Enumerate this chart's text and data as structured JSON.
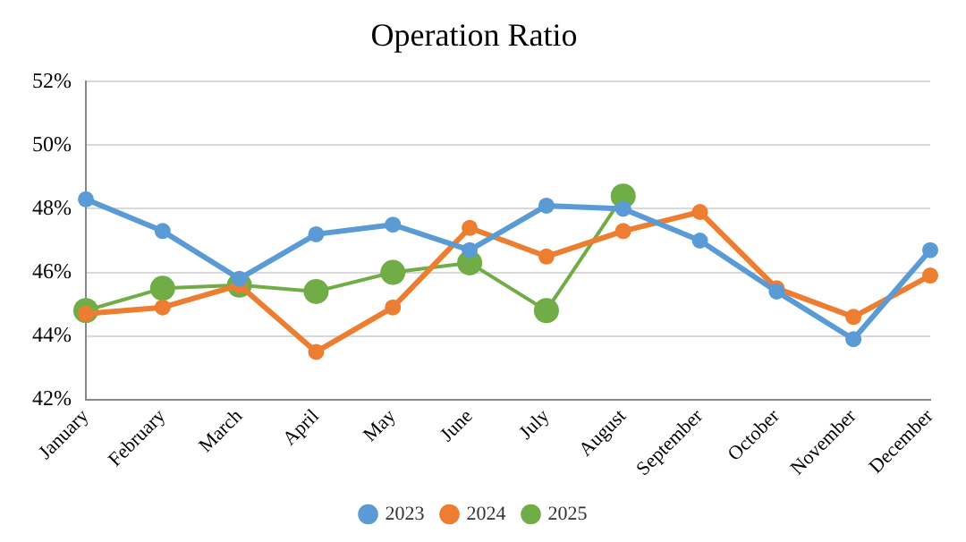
{
  "chart_data": {
    "type": "line",
    "title": "Operation Ratio",
    "categories": [
      "January",
      "February",
      "March",
      "April",
      "May",
      "June",
      "July",
      "August",
      "September",
      "October",
      "November",
      "December"
    ],
    "series": [
      {
        "name": "2023",
        "color": "#5b9bd5",
        "values": [
          48.3,
          47.3,
          45.8,
          47.2,
          47.5,
          46.7,
          48.1,
          48.0,
          47.0,
          45.4,
          43.9,
          46.7
        ]
      },
      {
        "name": "2024",
        "color": "#ed7d31",
        "values": [
          44.7,
          44.9,
          45.6,
          43.5,
          44.9,
          47.4,
          46.5,
          47.3,
          47.9,
          45.5,
          44.6,
          45.9
        ]
      },
      {
        "name": "2025",
        "color": "#70ad47",
        "values": [
          44.8,
          45.5,
          45.6,
          45.4,
          46.0,
          46.3,
          44.8,
          48.4,
          null,
          null,
          null,
          null
        ]
      }
    ],
    "ylim": [
      42,
      52
    ],
    "yticks": [
      {
        "value": 42,
        "label": "42%"
      },
      {
        "value": 44,
        "label": "44%"
      },
      {
        "value": 46,
        "label": "46%"
      },
      {
        "value": 48,
        "label": "48%"
      },
      {
        "value": 50,
        "label": "50%"
      },
      {
        "value": 52,
        "label": "52%"
      }
    ],
    "grid": "y",
    "legend": "bottom",
    "marker": "circle",
    "line_style": "solid"
  }
}
